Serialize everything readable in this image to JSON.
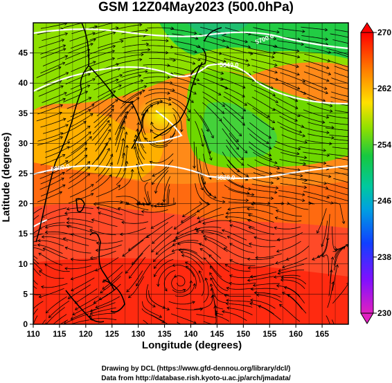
{
  "title": "GSM 12Z04May2023 (500.0hPa)",
  "x_axis": {
    "label": "Longitude (degrees)",
    "range": [
      110,
      170
    ],
    "ticks": [
      "110",
      "115",
      "120",
      "125",
      "130",
      "135",
      "140",
      "145",
      "150",
      "155",
      "160",
      "165"
    ]
  },
  "y_axis": {
    "label": "Latitude  (degrees)",
    "range": [
      0,
      50
    ],
    "ticks": [
      "0",
      "5",
      "10",
      "15",
      "20",
      "25",
      "30",
      "35",
      "40",
      "45"
    ]
  },
  "colorbar": {
    "min": 230,
    "max": 270,
    "tick_labels": [
      "270",
      "262",
      "254",
      "246",
      "238",
      "230"
    ],
    "colors": [
      "#ff0000",
      "#ff7a00",
      "#ffe000",
      "#90e000",
      "#16c840",
      "#00c8a0",
      "#00a0e0",
      "#1040ff",
      "#8010ff",
      "#e020c0"
    ]
  },
  "contour_labels": [
    "5700.0",
    "5640.0",
    "5880.0",
    "5820.0"
  ],
  "footer": {
    "line1": "Drawing by DCL (https://www.gfd-dennou.org/library/dcl/)",
    "line2": "Data from http://database.rish.kyoto-u.ac.jp/arch/jmadata/"
  }
}
